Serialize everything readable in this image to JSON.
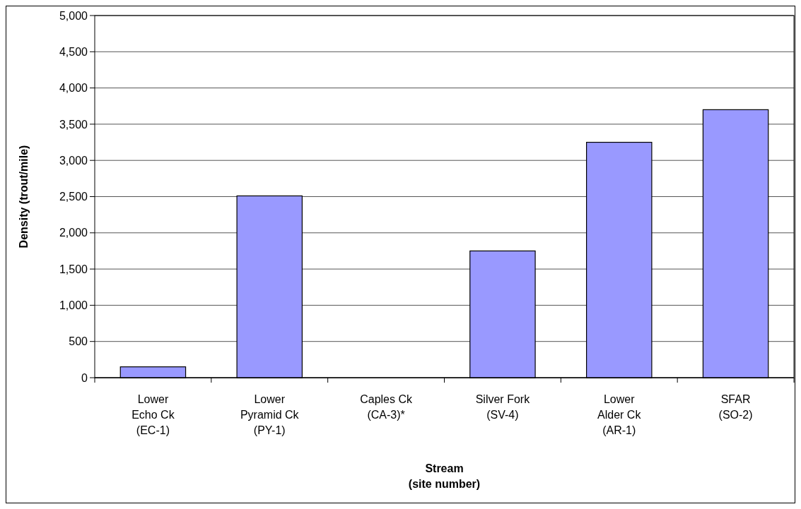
{
  "chart_data": {
    "type": "bar",
    "xlabel": "Stream\n(site number)",
    "ylabel": "Density (trout/mile)",
    "categories": [
      "Lower\nEcho Ck\n(EC-1)",
      "Lower\nPyramid Ck\n(PY-1)",
      "Caples Ck\n(CA-3)*",
      "Silver Fork\n(SV-4)",
      "Lower\nAlder Ck\n(AR-1)",
      "SFAR\n(SO-2)"
    ],
    "values": [
      150,
      2510,
      0,
      1750,
      3250,
      3700
    ],
    "color": "#9999ff",
    "ylim": [
      0,
      5000
    ],
    "yticks": [
      {
        "value": 0,
        "label": "0"
      },
      {
        "value": 500,
        "label": "500"
      },
      {
        "value": 1000,
        "label": "1,000"
      },
      {
        "value": 1500,
        "label": "1,500"
      },
      {
        "value": 2000,
        "label": "2,000"
      },
      {
        "value": 2500,
        "label": "2,500"
      },
      {
        "value": 3000,
        "label": "3,000"
      },
      {
        "value": 3500,
        "label": "3,500"
      },
      {
        "value": 4000,
        "label": "4,000"
      },
      {
        "value": 4500,
        "label": "4,500"
      },
      {
        "value": 5000,
        "label": "5,000"
      }
    ],
    "grid": "y"
  }
}
